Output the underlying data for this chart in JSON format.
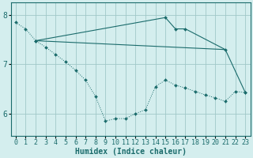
{
  "xlabel": "Humidex (Indice chaleur)",
  "bg_color": "#d4eeee",
  "grid_color": "#a0c8c8",
  "line_color": "#1a6b6b",
  "line1_x": [
    0,
    1,
    2,
    3,
    4,
    5,
    6,
    7,
    8,
    9,
    10,
    11,
    12,
    13,
    14,
    15,
    16,
    17,
    18,
    19,
    20,
    21,
    22,
    23
  ],
  "line1_y": [
    7.85,
    7.72,
    7.48,
    7.35,
    7.2,
    7.05,
    6.88,
    6.68,
    6.35,
    5.85,
    5.9,
    5.9,
    6.0,
    6.08,
    6.55,
    6.68,
    6.58,
    6.52,
    6.45,
    6.38,
    6.32,
    6.25,
    6.45,
    6.43
  ],
  "line2_x": [
    2,
    21
  ],
  "line2_y": [
    7.48,
    7.3
  ],
  "line3_x": [
    2,
    15,
    16,
    17,
    21,
    23
  ],
  "line3_y": [
    7.48,
    7.95,
    7.72,
    7.72,
    7.3,
    6.43
  ],
  "xlim": [
    -0.5,
    23.5
  ],
  "ylim": [
    5.55,
    8.25
  ],
  "yticks": [
    6,
    7,
    8
  ],
  "xticks": [
    0,
    1,
    2,
    3,
    4,
    5,
    6,
    7,
    8,
    9,
    10,
    11,
    12,
    13,
    14,
    15,
    16,
    17,
    18,
    19,
    20,
    21,
    22,
    23
  ],
  "xlabel_fontsize": 7,
  "tick_fontsize": 6
}
